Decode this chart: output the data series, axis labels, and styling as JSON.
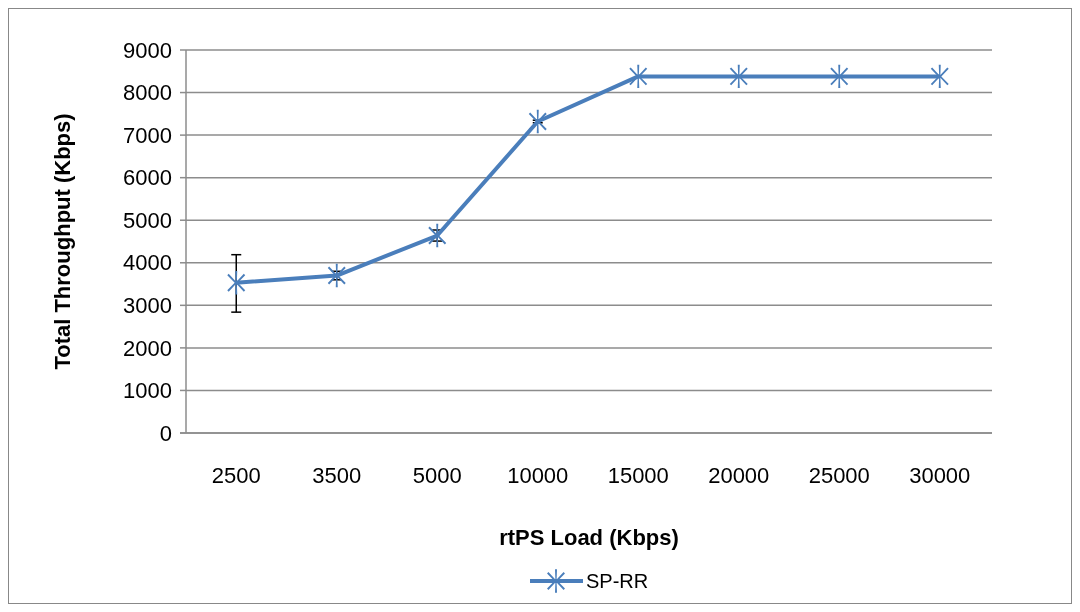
{
  "chart_data": {
    "type": "line",
    "xlabel": "rtPS Load (Kbps)",
    "ylabel": "Total Throughput (Kbps)",
    "categories": [
      "2500",
      "3500",
      "5000",
      "10000",
      "15000",
      "20000",
      "25000",
      "30000"
    ],
    "series": [
      {
        "name": "SP-RR",
        "color": "#4a7ebb",
        "values": [
          3530,
          3700,
          4640,
          7320,
          8380,
          8380,
          8380,
          8380
        ],
        "errors": [
          [
            2840,
            4190
          ],
          100,
          130,
          30,
          null,
          null,
          null,
          null
        ]
      }
    ],
    "ylim": [
      0,
      9000
    ],
    "yticks": [
      0,
      1000,
      2000,
      3000,
      4000,
      5000,
      6000,
      7000,
      8000,
      9000
    ],
    "grid": "y",
    "legend": "bottom",
    "marker": "star",
    "line_style": "solid"
  }
}
